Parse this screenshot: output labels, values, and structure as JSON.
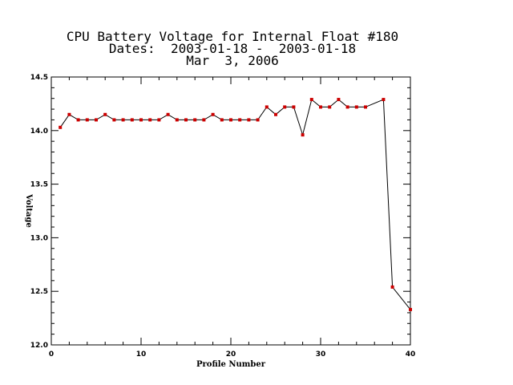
{
  "chart_data": {
    "type": "line",
    "title_lines": [
      "CPU Battery Voltage for Internal Float #180",
      "Dates:  2003-01-18 -  2003-01-18",
      "Mar  3, 2006"
    ],
    "xlabel": "Profile Number",
    "ylabel": "Voltage",
    "xlim": [
      0,
      40
    ],
    "ylim": [
      12.0,
      14.5
    ],
    "x_ticks": [
      "0",
      "10",
      "20",
      "30",
      "40"
    ],
    "y_ticks": [
      "12.0",
      "12.5",
      "13.0",
      "13.5",
      "14.0",
      "14.5"
    ],
    "grid": false,
    "line_color": "#000000",
    "marker_color": "#cc0000",
    "x": [
      1,
      2,
      3,
      4,
      5,
      6,
      7,
      8,
      9,
      10,
      11,
      12,
      13,
      14,
      15,
      16,
      17,
      18,
      19,
      20,
      21,
      22,
      23,
      24,
      25,
      26,
      27,
      28,
      29,
      30,
      31,
      32,
      33,
      34,
      35,
      37,
      38,
      40
    ],
    "y": [
      14.03,
      14.15,
      14.1,
      14.1,
      14.1,
      14.15,
      14.1,
      14.1,
      14.1,
      14.1,
      14.1,
      14.1,
      14.15,
      14.1,
      14.1,
      14.1,
      14.1,
      14.15,
      14.1,
      14.1,
      14.1,
      14.1,
      14.1,
      14.22,
      14.15,
      14.22,
      14.22,
      13.96,
      14.29,
      14.22,
      14.22,
      14.29,
      14.22,
      14.22,
      14.22,
      14.29,
      12.54,
      12.33
    ]
  }
}
